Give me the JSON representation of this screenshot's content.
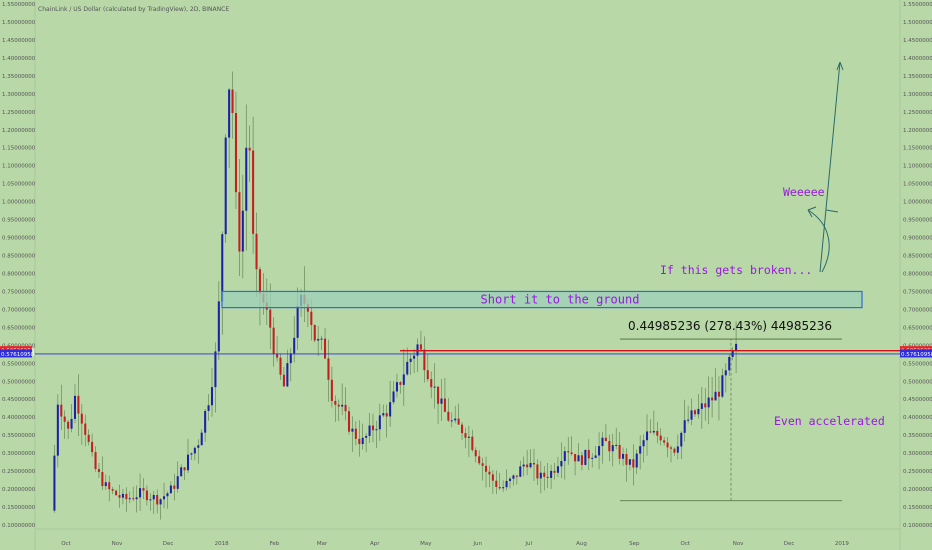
{
  "header": {
    "title": "ChainLink / US Dollar (calculated by TradingView), 2D, BINANCE"
  },
  "chart_data": {
    "type": "candlestick",
    "y_range": [
      0.1,
      1.55
    ],
    "x_ticks": [
      {
        "label": "Oct",
        "x": 0.015
      },
      {
        "label": "Nov",
        "x": 0.074
      },
      {
        "label": "Dec",
        "x": 0.133
      },
      {
        "label": "2018",
        "x": 0.195
      },
      {
        "label": "Feb",
        "x": 0.256
      },
      {
        "label": "Mar",
        "x": 0.311
      },
      {
        "label": "Apr",
        "x": 0.372
      },
      {
        "label": "May",
        "x": 0.431
      },
      {
        "label": "Jun",
        "x": 0.491
      },
      {
        "label": "Jul",
        "x": 0.55
      },
      {
        "label": "Aug",
        "x": 0.611
      },
      {
        "label": "Sep",
        "x": 0.672
      },
      {
        "label": "Oct",
        "x": 0.731
      },
      {
        "label": "Nov",
        "x": 0.792
      },
      {
        "label": "Dec",
        "x": 0.851
      },
      {
        "label": "2019",
        "x": 0.912
      }
    ],
    "y_ticks": [
      "1.55000000",
      "1.50000000",
      "1.45000000",
      "1.40000000",
      "1.35000000",
      "1.30000000",
      "1.25000000",
      "1.20000000",
      "1.15000000",
      "1.10000000",
      "1.05000000",
      "1.00000000",
      "0.95000000",
      "0.90000000",
      "0.85000000",
      "0.80000000",
      "0.75000000",
      "0.70000000",
      "0.65000000",
      "0.60000000",
      "0.55000000",
      "0.50000000",
      "0.45000000",
      "0.40000000",
      "0.35000000",
      "0.30000000",
      "0.25000000",
      "0.20000000",
      "0.15000000",
      "0.10000000"
    ],
    "price_tags": {
      "red": {
        "label": "0.58525253",
        "value": 0.58525253,
        "color": "#e8232a"
      },
      "blue": {
        "label": "0.57610958",
        "value": 0.57610958,
        "color": "#2d2ddc"
      }
    },
    "keyframes": [
      [
        0.0,
        0.14
      ],
      [
        0.008,
        0.45
      ],
      [
        0.02,
        0.36
      ],
      [
        0.028,
        0.46
      ],
      [
        0.038,
        0.38
      ],
      [
        0.05,
        0.26
      ],
      [
        0.065,
        0.2
      ],
      [
        0.085,
        0.17
      ],
      [
        0.105,
        0.19
      ],
      [
        0.125,
        0.17
      ],
      [
        0.14,
        0.2
      ],
      [
        0.155,
        0.27
      ],
      [
        0.17,
        0.33
      ],
      [
        0.183,
        0.46
      ],
      [
        0.192,
        0.6
      ],
      [
        0.198,
        0.92
      ],
      [
        0.204,
        1.37
      ],
      [
        0.21,
        1.25
      ],
      [
        0.216,
        0.85
      ],
      [
        0.222,
        0.98
      ],
      [
        0.228,
        1.26
      ],
      [
        0.235,
        0.8
      ],
      [
        0.245,
        0.72
      ],
      [
        0.255,
        0.64
      ],
      [
        0.262,
        0.53
      ],
      [
        0.27,
        0.48
      ],
      [
        0.279,
        0.61
      ],
      [
        0.288,
        0.72
      ],
      [
        0.297,
        0.72
      ],
      [
        0.306,
        0.61
      ],
      [
        0.316,
        0.59
      ],
      [
        0.326,
        0.45
      ],
      [
        0.336,
        0.42
      ],
      [
        0.348,
        0.36
      ],
      [
        0.36,
        0.33
      ],
      [
        0.372,
        0.37
      ],
      [
        0.392,
        0.43
      ],
      [
        0.41,
        0.54
      ],
      [
        0.424,
        0.6
      ],
      [
        0.433,
        0.55
      ],
      [
        0.443,
        0.48
      ],
      [
        0.453,
        0.42
      ],
      [
        0.465,
        0.38
      ],
      [
        0.48,
        0.36
      ],
      [
        0.492,
        0.3
      ],
      [
        0.505,
        0.24
      ],
      [
        0.52,
        0.2
      ],
      [
        0.535,
        0.23
      ],
      [
        0.55,
        0.28
      ],
      [
        0.565,
        0.23
      ],
      [
        0.58,
        0.25
      ],
      [
        0.595,
        0.32
      ],
      [
        0.61,
        0.28
      ],
      [
        0.625,
        0.3
      ],
      [
        0.64,
        0.33
      ],
      [
        0.656,
        0.3
      ],
      [
        0.672,
        0.26
      ],
      [
        0.688,
        0.35
      ],
      [
        0.705,
        0.35
      ],
      [
        0.72,
        0.31
      ],
      [
        0.735,
        0.39
      ],
      [
        0.75,
        0.42
      ],
      [
        0.768,
        0.46
      ],
      [
        0.778,
        0.5
      ],
      [
        0.786,
        0.56
      ],
      [
        0.792,
        0.585
      ]
    ],
    "ranges": [
      {
        "label": "Short it to the ground",
        "y_low": 0.705,
        "y_high": 0.75
      },
      {
        "measurement_label": "0.44985236 (278.43%) 44985236",
        "y_low": 0.1675,
        "y_high": 0.6175
      }
    ],
    "annotations": [
      {
        "text": "If this gets broken...",
        "color": "#9b17e0"
      },
      {
        "text": "Weeeee",
        "color": "#9b17e0"
      },
      {
        "text": "Even accelerated",
        "color": "#9b17e0"
      }
    ],
    "up_color": "#1b22a8",
    "down_color": "#c41f1f",
    "resistance_color": "#d0111c"
  }
}
